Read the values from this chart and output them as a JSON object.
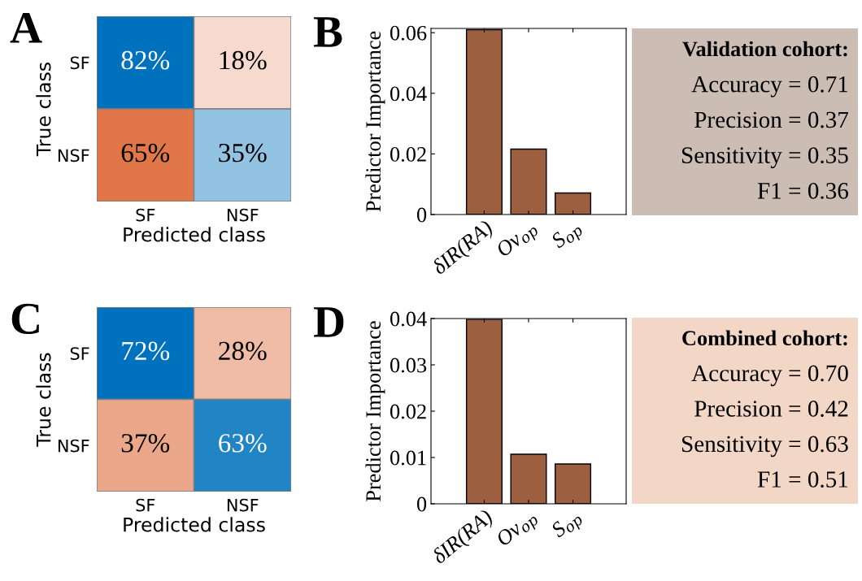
{
  "chart_data": [
    {
      "type": "heatmap",
      "annotations": [
        "A"
      ],
      "xlabel": "Predicted class",
      "ylabel": "True class",
      "categories": [
        "SF",
        "NSF"
      ],
      "y_categories": [
        "SF",
        "NSF"
      ],
      "cells": [
        [
          82,
          18
        ],
        [
          65,
          35
        ]
      ],
      "cell_labels": [
        [
          "82%",
          "18%"
        ],
        [
          "65%",
          "35%"
        ]
      ],
      "colors": [
        "#0072bd",
        "#d95319"
      ]
    },
    {
      "type": "bar",
      "annotations": [
        "B"
      ],
      "ylabel": "Predictor Importance",
      "categories": [
        "δIR(RA)",
        "Ov$_{op}$",
        "S$_{op}$"
      ],
      "values": [
        0.061,
        0.0216,
        0.0071
      ],
      "color": "#9c6040",
      "ylim": [
        0,
        0.0614
      ],
      "yticks": [
        0,
        0.02,
        0.04,
        0.06
      ]
    },
    {
      "type": "other",
      "title": "Validation cohort:",
      "annotations": [
        "Accuracy = 0.71",
        "Precision = 0.37",
        "Sensitivity = 0.35",
        "F1 = 0.36"
      ],
      "color": "#cbbdb3"
    },
    {
      "type": "heatmap",
      "annotations": [
        "C"
      ],
      "xlabel": "Predicted class",
      "ylabel": "True class",
      "categories": [
        "SF",
        "NSF"
      ],
      "y_categories": [
        "SF",
        "NSF"
      ],
      "cells": [
        [
          72,
          28
        ],
        [
          37,
          63
        ]
      ],
      "cell_labels": [
        [
          "72%",
          "28%"
        ],
        [
          "37%",
          "63%"
        ]
      ],
      "colors": [
        "#0072bd",
        "#d95319"
      ]
    },
    {
      "type": "bar",
      "annotations": [
        "D"
      ],
      "ylabel": "Predictor Importance",
      "categories": [
        "δIR(RA)",
        "Ov$_{op}$",
        "S$_{op}$"
      ],
      "values": [
        0.0398,
        0.0107,
        0.0086
      ],
      "color": "#9c6040",
      "ylim": [
        0,
        0.04
      ],
      "yticks": [
        0,
        0.01,
        0.02,
        0.03,
        0.04
      ]
    },
    {
      "type": "other",
      "title": "Combined cohort:",
      "annotations": [
        "Accuracy = 0.70",
        "Precision = 0.42",
        "Sensitivity = 0.63",
        "F1 = 0.51"
      ],
      "color": "#f2d6c6"
    }
  ]
}
